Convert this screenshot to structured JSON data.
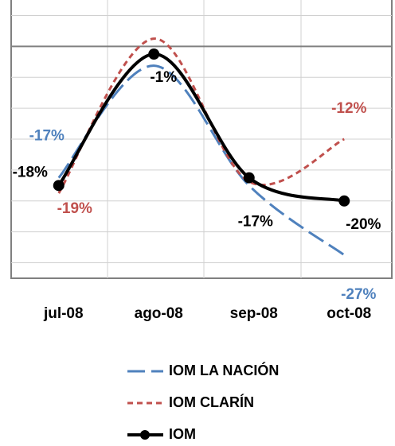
{
  "chart_data": {
    "type": "line",
    "categories": [
      "jul-08",
      "ago-08",
      "sep-08",
      "oct-08"
    ],
    "series": [
      {
        "name": "IOM LA NACIÓN",
        "color": "#4f81bd",
        "dash": "long",
        "values": [
          -17,
          -2.5,
          -18,
          -27
        ],
        "value_labels": [
          "-17%",
          null,
          null,
          "-27%"
        ]
      },
      {
        "name": "IOM CLARÍN",
        "color": "#c0504d",
        "dash": "short",
        "values": [
          -19,
          1,
          -17.5,
          -12
        ],
        "value_labels": [
          "-19%",
          null,
          null,
          "-12%"
        ]
      },
      {
        "name": "IOM",
        "color": "#000000",
        "dash": "none",
        "marker": true,
        "values": [
          -18,
          -1,
          -17,
          -20
        ],
        "value_labels": [
          "-18%",
          "-1%",
          "-17%",
          "-20%"
        ]
      }
    ],
    "ylim": [
      -30,
      6
    ],
    "yticks": [
      4,
      0,
      -4,
      -8,
      -12,
      -16,
      -20,
      -24,
      -28
    ],
    "grid": true
  }
}
